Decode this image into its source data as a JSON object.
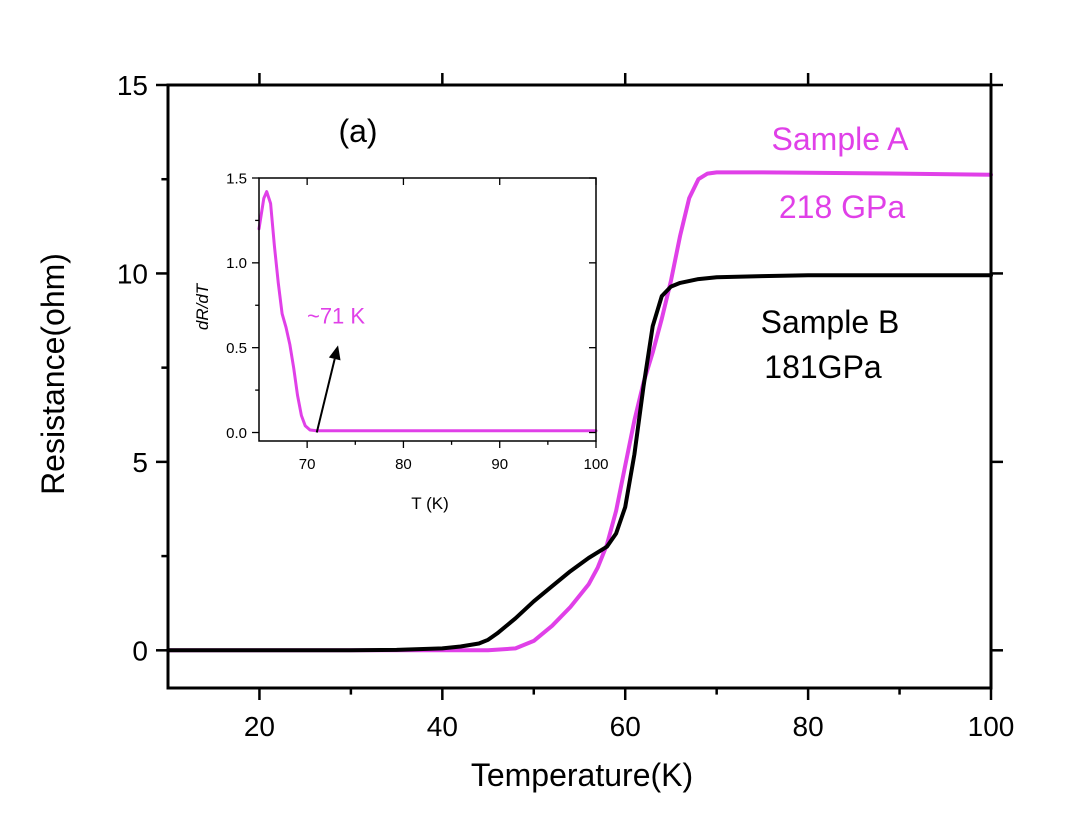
{
  "colors": {
    "sample_a": "#e040e8",
    "sample_b": "#000000",
    "axes": "#000000",
    "background": "#ffffff"
  },
  "chart_data": [
    {
      "id": "main",
      "type": "line",
      "panel_label": "(a)",
      "xlabel": "Temperature(K)",
      "ylabel": "Resistance(ohm)",
      "xlim": [
        10,
        100
      ],
      "ylim": [
        -1,
        15
      ],
      "xticks": [
        20,
        40,
        60,
        80,
        100
      ],
      "yticks": [
        0,
        5,
        10,
        15
      ],
      "series": [
        {
          "name": "Sample A",
          "pressure": "218 GPa",
          "color": "#e040e8",
          "x": [
            10,
            20,
            30,
            40,
            45,
            48,
            50,
            52,
            54,
            56,
            57,
            58,
            59,
            60,
            61,
            62,
            63,
            64,
            65,
            66,
            67,
            68,
            69,
            70,
            75,
            80,
            90,
            100
          ],
          "y": [
            0,
            0,
            0,
            0,
            0,
            0.05,
            0.25,
            0.65,
            1.15,
            1.75,
            2.2,
            2.8,
            3.7,
            4.9,
            6.1,
            7.1,
            7.9,
            8.8,
            9.8,
            11.0,
            12.0,
            12.5,
            12.65,
            12.68,
            12.68,
            12.67,
            12.65,
            12.62
          ]
        },
        {
          "name": "Sample B",
          "pressure": "181GPa",
          "color": "#000000",
          "x": [
            10,
            20,
            30,
            35,
            40,
            42,
            44,
            45,
            46,
            48,
            50,
            52,
            54,
            56,
            58,
            59,
            60,
            61,
            62,
            63,
            64,
            65,
            66,
            68,
            70,
            75,
            80,
            90,
            100
          ],
          "y": [
            0,
            0,
            0,
            0.01,
            0.05,
            0.1,
            0.18,
            0.28,
            0.45,
            0.85,
            1.3,
            1.7,
            2.1,
            2.45,
            2.75,
            3.1,
            3.8,
            5.2,
            7.0,
            8.6,
            9.4,
            9.65,
            9.75,
            9.85,
            9.9,
            9.93,
            9.95,
            9.95,
            9.95
          ]
        }
      ]
    },
    {
      "id": "inset",
      "type": "line",
      "xlabel": "T (K)",
      "ylabel": "dR/dT",
      "xlim": [
        65,
        100
      ],
      "ylim": [
        -0.05,
        1.5
      ],
      "xticks": [
        70,
        80,
        90,
        100
      ],
      "yticks": [
        0.0,
        0.5,
        1.0,
        1.5
      ],
      "ytick_labels": [
        "0.0",
        "0.5",
        "1.0",
        "1.5"
      ],
      "annotation": "~71 K",
      "annotation_target": [
        71,
        0.0
      ],
      "annotation_text_pos": [
        73,
        0.62
      ],
      "series": [
        {
          "name": "dR/dT",
          "color": "#e040e8",
          "x": [
            65,
            65.5,
            65.8,
            66.2,
            66.6,
            67.0,
            67.4,
            67.8,
            68.2,
            68.6,
            69.0,
            69.4,
            69.8,
            70.3,
            71,
            72,
            75,
            80,
            90,
            100
          ],
          "y": [
            1.2,
            1.38,
            1.42,
            1.35,
            1.1,
            0.88,
            0.7,
            0.62,
            0.52,
            0.38,
            0.22,
            0.1,
            0.04,
            0.015,
            0.01,
            0.01,
            0.01,
            0.01,
            0.01,
            0.01
          ]
        }
      ]
    }
  ]
}
